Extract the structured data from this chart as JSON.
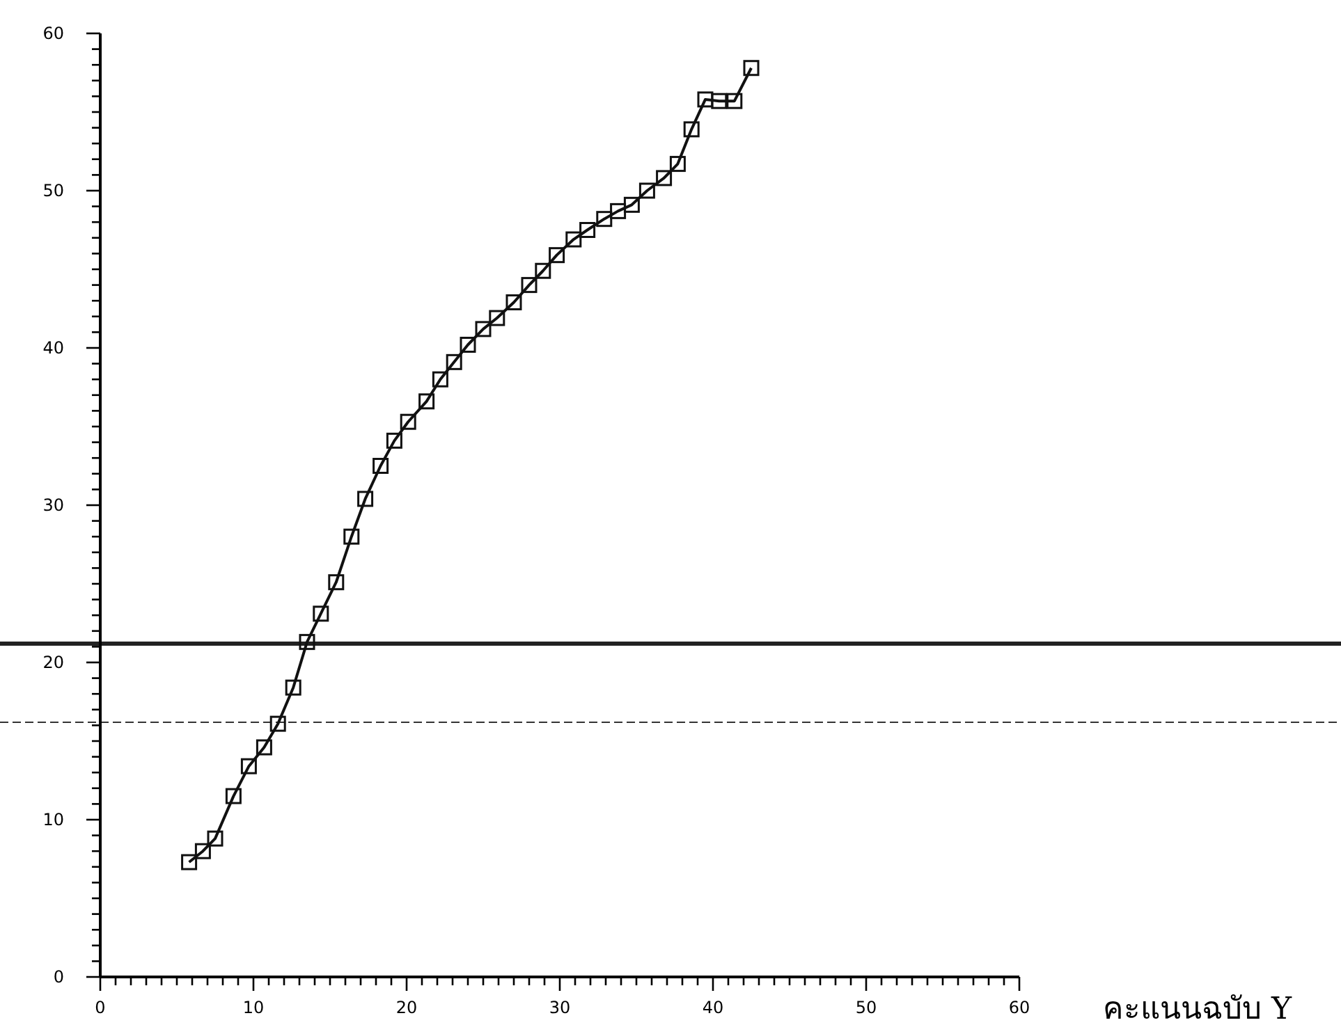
{
  "chart_data": {
    "type": "line",
    "xlabel": "คะแนนฉบับ Y",
    "x": [
      5.8,
      6.7,
      7.5,
      8.7,
      9.7,
      10.7,
      11.6,
      12.6,
      13.5,
      14.4,
      15.4,
      16.4,
      17.3,
      18.3,
      19.2,
      20.1,
      21.3,
      22.2,
      23.1,
      24.0,
      25.0,
      25.9,
      27.0,
      28.0,
      28.9,
      29.8,
      30.9,
      31.8,
      32.9,
      33.8,
      34.7,
      35.7,
      36.8,
      37.7,
      38.6,
      39.5,
      40.4,
      41.4,
      42.5
    ],
    "series": [
      {
        "color": "#111111",
        "values": [
          7.3,
          8.0,
          8.8,
          11.5,
          13.4,
          14.6,
          16.1,
          18.4,
          21.3,
          23.1,
          25.1,
          28.0,
          30.4,
          32.5,
          34.1,
          35.3,
          36.6,
          38.0,
          39.1,
          40.2,
          41.2,
          41.9,
          42.9,
          44.0,
          44.9,
          45.9,
          46.9,
          47.5,
          48.2,
          48.7,
          49.1,
          50.0,
          50.8,
          51.7,
          53.9,
          55.8,
          55.7,
          55.7,
          57.8
        ]
      }
    ],
    "marker": "square",
    "line_style": "solid",
    "xlim": [
      0,
      60
    ],
    "ylim": [
      0,
      60
    ],
    "xticks": [
      0,
      {
        "value": 1,
        "label": null
      },
      {
        "value": 2,
        "label": null
      },
      {
        "value": 3,
        "label": null
      },
      {
        "value": 4,
        "label": null
      },
      {
        "value": 5,
        "label": null
      },
      {
        "value": 6,
        "label": null
      },
      {
        "value": 7,
        "label": null
      },
      {
        "value": 8,
        "label": null
      },
      {
        "value": 9,
        "label": null
      },
      10,
      {
        "value": 11,
        "label": null
      },
      {
        "value": 12,
        "label": null
      },
      {
        "value": 13,
        "label": null
      },
      {
        "value": 14,
        "label": null
      },
      {
        "value": 15,
        "label": null
      },
      {
        "value": 16,
        "label": null
      },
      {
        "value": 17,
        "label": null
      },
      {
        "value": 18,
        "label": null
      },
      {
        "value": 19,
        "label": null
      },
      20,
      {
        "value": 21,
        "label": null
      },
      {
        "value": 22,
        "label": null
      },
      {
        "value": 23,
        "label": null
      },
      {
        "value": 24,
        "label": null
      },
      {
        "value": 25,
        "label": null
      },
      {
        "value": 26,
        "label": null
      },
      {
        "value": 27,
        "label": null
      },
      {
        "value": 28,
        "label": null
      },
      {
        "value": 29,
        "label": null
      },
      30,
      {
        "value": 31,
        "label": null
      },
      {
        "value": 32,
        "label": null
      },
      {
        "value": 33,
        "label": null
      },
      {
        "value": 34,
        "label": null
      },
      {
        "value": 35,
        "label": null
      },
      {
        "value": 36,
        "label": null
      },
      {
        "value": 37,
        "label": null
      },
      {
        "value": 38,
        "label": null
      },
      {
        "value": 39,
        "label": null
      },
      40,
      {
        "value": 41,
        "label": null
      },
      {
        "value": 42,
        "label": null
      },
      {
        "value": 43,
        "label": null
      },
      {
        "value": 44,
        "label": null
      },
      {
        "value": 45,
        "label": null
      },
      {
        "value": 46,
        "label": null
      },
      {
        "value": 47,
        "label": null
      },
      {
        "value": 48,
        "label": null
      },
      {
        "value": 49,
        "label": null
      },
      50,
      {
        "value": 51,
        "label": null
      },
      {
        "value": 52,
        "label": null
      },
      {
        "value": 53,
        "label": null
      },
      {
        "value": 54,
        "label": null
      },
      {
        "value": 55,
        "label": null
      },
      {
        "value": 56,
        "label": null
      },
      {
        "value": 57,
        "label": null
      },
      {
        "value": 58,
        "label": null
      },
      {
        "value": 59,
        "label": null
      },
      60
    ],
    "yticks": [
      0,
      {
        "value": 1,
        "label": null
      },
      {
        "value": 2,
        "label": null
      },
      {
        "value": 3,
        "label": null
      },
      {
        "value": 4,
        "label": null
      },
      {
        "value": 5,
        "label": null
      },
      {
        "value": 6,
        "label": null
      },
      {
        "value": 7,
        "label": null
      },
      {
        "value": 8,
        "label": null
      },
      {
        "value": 9,
        "label": null
      },
      10,
      {
        "value": 11,
        "label": null
      },
      {
        "value": 12,
        "label": null
      },
      {
        "value": 13,
        "label": null
      },
      {
        "value": 14,
        "label": null
      },
      {
        "value": 15,
        "label": null
      },
      {
        "value": 16,
        "label": null
      },
      {
        "value": 17,
        "label": null
      },
      {
        "value": 18,
        "label": null
      },
      {
        "value": 19,
        "label": null
      },
      20,
      {
        "value": 21,
        "label": null
      },
      {
        "value": 22,
        "label": null
      },
      {
        "value": 23,
        "label": null
      },
      {
        "value": 24,
        "label": null
      },
      {
        "value": 25,
        "label": null
      },
      {
        "value": 26,
        "label": null
      },
      {
        "value": 27,
        "label": null
      },
      {
        "value": 28,
        "label": null
      },
      {
        "value": 29,
        "label": null
      },
      30,
      {
        "value": 31,
        "label": null
      },
      {
        "value": 32,
        "label": null
      },
      {
        "value": 33,
        "label": null
      },
      {
        "value": 34,
        "label": null
      },
      {
        "value": 35,
        "label": null
      },
      {
        "value": 36,
        "label": null
      },
      {
        "value": 37,
        "label": null
      },
      {
        "value": 38,
        "label": null
      },
      {
        "value": 39,
        "label": null
      },
      40,
      {
        "value": 41,
        "label": null
      },
      {
        "value": 42,
        "label": null
      },
      {
        "value": 43,
        "label": null
      },
      {
        "value": 44,
        "label": null
      },
      {
        "value": 45,
        "label": null
      },
      {
        "value": 46,
        "label": null
      },
      {
        "value": 47,
        "label": null
      },
      {
        "value": 48,
        "label": null
      },
      {
        "value": 49,
        "label": null
      },
      50,
      {
        "value": 51,
        "label": null
      },
      {
        "value": 52,
        "label": null
      },
      {
        "value": 53,
        "label": null
      },
      {
        "value": 54,
        "label": null
      },
      {
        "value": 55,
        "label": null
      },
      {
        "value": 56,
        "label": null
      },
      {
        "value": 57,
        "label": null
      },
      {
        "value": 58,
        "label": null
      },
      {
        "value": 59,
        "label": null
      },
      60
    ],
    "ref_lines": [
      {
        "axis": "y",
        "value": 21.2,
        "color": "#222222",
        "line_style": "solid"
      },
      {
        "axis": "y",
        "value": 16.2,
        "color": "#333333",
        "line_style": "dashed"
      }
    ],
    "grid": false
  }
}
